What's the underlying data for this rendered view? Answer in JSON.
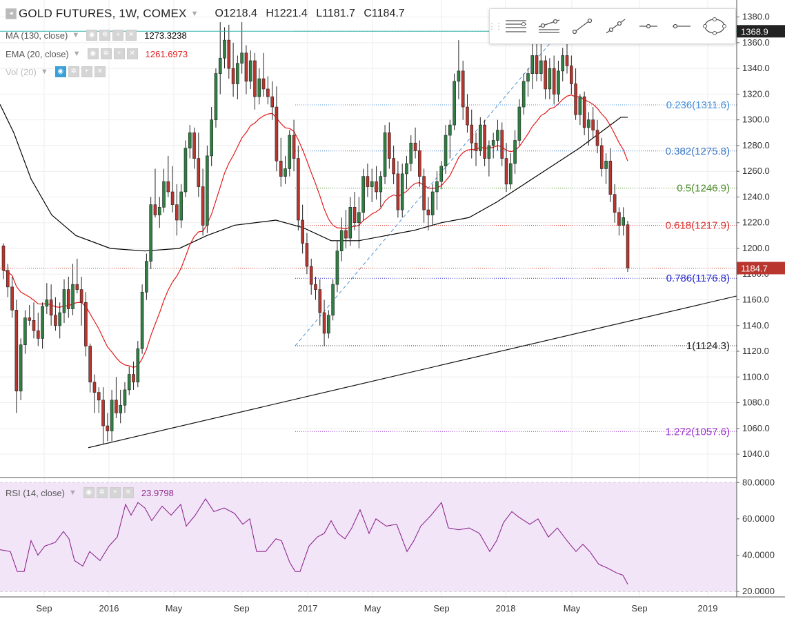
{
  "header": {
    "symbol_title": "GOLD FUTURES, 1W, COMEX",
    "open": "O1218.4",
    "high": "H1221.4",
    "low": "L1181.7",
    "close": "C1184.7"
  },
  "indicators": {
    "ma": {
      "label": "MA (130, close)",
      "value": "1273.3238",
      "color": "#000000"
    },
    "ema": {
      "label": "EMA (20, close)",
      "value": "1261.6973",
      "color": "#e31b1b"
    },
    "vol": {
      "label": "Vol (20)"
    },
    "rsi": {
      "label": "RSI (14, close)",
      "value": "23.9798",
      "color": "#8e2a8e"
    }
  },
  "toolbar_icons": [
    "horizontal-lines-icon",
    "channel-icon",
    "trend-line-icon",
    "ray-icon",
    "horizontal-ray-icon",
    "horizontal-line-icon",
    "ellipse-icon"
  ],
  "price_labels": {
    "last": "1184.7",
    "cursor": "1368.9"
  },
  "colors": {
    "up": "#2f7f43",
    "down": "#b8362e",
    "grid": "#eeeeee",
    "rsi_band": "#f2e5f8"
  },
  "chart_data": {
    "type": "candlestick",
    "title": "GOLD FUTURES, 1W, COMEX",
    "ylim": [
      1025,
      1390
    ],
    "price_ticks": [
      1040,
      1060,
      1080,
      1100,
      1120,
      1140,
      1160,
      1180,
      1200,
      1220,
      1240,
      1260,
      1280,
      1300,
      1320,
      1340,
      1360,
      1380
    ],
    "x_tick_labels": [
      "Sep",
      "2016",
      "May",
      "Sep",
      "2017",
      "May",
      "Sep",
      "2018",
      "May",
      "Sep",
      "2019"
    ],
    "rsi_ylim": [
      17,
      82
    ],
    "rsi_ticks": [
      "20.0000",
      "40.0000",
      "60.0000",
      "80.0000"
    ],
    "fibonacci": [
      {
        "label": "0.236(1311.6)",
        "value": 1311.6,
        "color": "#4a8fd8"
      },
      {
        "label": "0.382(1275.8)",
        "value": 1275.8,
        "color": "#3d78c4"
      },
      {
        "label": "0.5(1246.9)",
        "value": 1246.9,
        "color": "#4c8c2a"
      },
      {
        "label": "0.618(1217.9)",
        "value": 1217.9,
        "color": "#d9302c"
      },
      {
        "label": "0.786(1176.8)",
        "value": 1176.8,
        "color": "#2c2cd0"
      },
      {
        "label": "1(1124.3)",
        "value": 1124.3,
        "color": "#222222"
      },
      {
        "label": "1.272(1057.6)",
        "value": 1057.6,
        "color": "#9a2ed0"
      }
    ],
    "trend_line": {
      "from": [
        1045,
        "Dec 2015"
      ],
      "to": [
        1163,
        "Sep 2019"
      ]
    },
    "ohlc": [
      [
        1202,
        1204,
        1176,
        1183
      ],
      [
        1183,
        1188,
        1162,
        1170
      ],
      [
        1170,
        1178,
        1146,
        1152
      ],
      [
        1152,
        1160,
        1072,
        1089
      ],
      [
        1089,
        1130,
        1082,
        1125
      ],
      [
        1125,
        1152,
        1118,
        1146
      ],
      [
        1146,
        1156,
        1140,
        1144
      ],
      [
        1144,
        1158,
        1130,
        1136
      ],
      [
        1136,
        1150,
        1124,
        1130
      ],
      [
        1130,
        1158,
        1122,
        1155
      ],
      [
        1155,
        1173,
        1149,
        1160
      ],
      [
        1160,
        1172,
        1140,
        1148
      ],
      [
        1148,
        1162,
        1136,
        1140
      ],
      [
        1140,
        1158,
        1130,
        1150
      ],
      [
        1150,
        1176,
        1142,
        1168
      ],
      [
        1168,
        1178,
        1146,
        1153
      ],
      [
        1153,
        1188,
        1148,
        1172
      ],
      [
        1172,
        1192,
        1165,
        1168
      ],
      [
        1168,
        1178,
        1140,
        1158
      ],
      [
        1158,
        1166,
        1116,
        1124
      ],
      [
        1124,
        1126,
        1088,
        1096
      ],
      [
        1096,
        1102,
        1072,
        1088
      ],
      [
        1088,
        1092,
        1072,
        1082
      ],
      [
        1082,
        1092,
        1048,
        1062
      ],
      [
        1062,
        1072,
        1050,
        1058
      ],
      [
        1058,
        1090,
        1050,
        1082
      ],
      [
        1082,
        1100,
        1068,
        1072
      ],
      [
        1072,
        1090,
        1064,
        1078
      ],
      [
        1078,
        1096,
        1072,
        1090
      ],
      [
        1090,
        1108,
        1086,
        1102
      ],
      [
        1102,
        1112,
        1090,
        1096
      ],
      [
        1096,
        1128,
        1092,
        1122
      ],
      [
        1122,
        1172,
        1118,
        1166
      ],
      [
        1166,
        1196,
        1160,
        1190
      ],
      [
        1190,
        1240,
        1184,
        1234
      ],
      [
        1234,
        1262,
        1224,
        1226
      ],
      [
        1226,
        1240,
        1216,
        1232
      ],
      [
        1232,
        1262,
        1228,
        1252
      ],
      [
        1252,
        1272,
        1240,
        1244
      ],
      [
        1244,
        1264,
        1228,
        1234
      ],
      [
        1234,
        1250,
        1210,
        1222
      ],
      [
        1222,
        1250,
        1216,
        1244
      ],
      [
        1244,
        1284,
        1240,
        1278
      ],
      [
        1278,
        1296,
        1270,
        1290
      ],
      [
        1290,
        1294,
        1262,
        1270
      ],
      [
        1270,
        1290,
        1240,
        1248
      ],
      [
        1248,
        1262,
        1210,
        1218
      ],
      [
        1218,
        1280,
        1212,
        1272
      ],
      [
        1272,
        1310,
        1264,
        1300
      ],
      [
        1300,
        1340,
        1294,
        1336
      ],
      [
        1336,
        1376,
        1320,
        1348
      ],
      [
        1348,
        1372,
        1340,
        1362
      ],
      [
        1362,
        1374,
        1332,
        1340
      ],
      [
        1340,
        1360,
        1318,
        1328
      ],
      [
        1328,
        1350,
        1316,
        1344
      ],
      [
        1344,
        1376,
        1336,
        1352
      ],
      [
        1352,
        1358,
        1320,
        1330
      ],
      [
        1330,
        1354,
        1324,
        1346
      ],
      [
        1346,
        1352,
        1308,
        1318
      ],
      [
        1318,
        1340,
        1312,
        1332
      ],
      [
        1332,
        1352,
        1318,
        1324
      ],
      [
        1324,
        1334,
        1312,
        1318
      ],
      [
        1318,
        1330,
        1300,
        1310
      ],
      [
        1310,
        1326,
        1260,
        1268
      ],
      [
        1268,
        1286,
        1248,
        1256
      ],
      [
        1256,
        1272,
        1250,
        1262
      ],
      [
        1262,
        1292,
        1256,
        1288
      ],
      [
        1288,
        1300,
        1260,
        1270
      ],
      [
        1270,
        1280,
        1214,
        1222
      ],
      [
        1222,
        1234,
        1196,
        1204
      ],
      [
        1204,
        1212,
        1180,
        1186
      ],
      [
        1186,
        1192,
        1164,
        1172
      ],
      [
        1172,
        1178,
        1160,
        1168
      ],
      [
        1168,
        1176,
        1140,
        1150
      ],
      [
        1150,
        1160,
        1124,
        1134
      ],
      [
        1134,
        1152,
        1130,
        1148
      ],
      [
        1148,
        1176,
        1144,
        1172
      ],
      [
        1172,
        1206,
        1166,
        1198
      ],
      [
        1198,
        1224,
        1190,
        1214
      ],
      [
        1214,
        1230,
        1200,
        1208
      ],
      [
        1208,
        1240,
        1202,
        1232
      ],
      [
        1232,
        1244,
        1214,
        1220
      ],
      [
        1220,
        1240,
        1200,
        1228
      ],
      [
        1228,
        1262,
        1222,
        1256
      ],
      [
        1256,
        1266,
        1240,
        1248
      ],
      [
        1248,
        1262,
        1236,
        1252
      ],
      [
        1252,
        1264,
        1238,
        1244
      ],
      [
        1244,
        1260,
        1232,
        1256
      ],
      [
        1256,
        1296,
        1250,
        1290
      ],
      [
        1290,
        1298,
        1262,
        1270
      ],
      [
        1270,
        1280,
        1250,
        1258
      ],
      [
        1258,
        1268,
        1224,
        1230
      ],
      [
        1230,
        1266,
        1224,
        1258
      ],
      [
        1258,
        1272,
        1246,
        1266
      ],
      [
        1266,
        1288,
        1260,
        1282
      ],
      [
        1282,
        1294,
        1270,
        1276
      ],
      [
        1276,
        1284,
        1248,
        1256
      ],
      [
        1256,
        1262,
        1220,
        1230
      ],
      [
        1230,
        1240,
        1214,
        1226
      ],
      [
        1226,
        1250,
        1218,
        1244
      ],
      [
        1244,
        1260,
        1230,
        1252
      ],
      [
        1252,
        1268,
        1246,
        1264
      ],
      [
        1264,
        1296,
        1258,
        1288
      ],
      [
        1288,
        1300,
        1270,
        1296
      ],
      [
        1296,
        1336,
        1292,
        1330
      ],
      [
        1330,
        1362,
        1316,
        1338
      ],
      [
        1338,
        1346,
        1300,
        1310
      ],
      [
        1310,
        1320,
        1290,
        1296
      ],
      [
        1296,
        1308,
        1270,
        1282
      ],
      [
        1282,
        1290,
        1264,
        1276
      ],
      [
        1276,
        1302,
        1272,
        1296
      ],
      [
        1296,
        1300,
        1264,
        1270
      ],
      [
        1270,
        1284,
        1256,
        1280
      ],
      [
        1280,
        1290,
        1270,
        1284
      ],
      [
        1284,
        1300,
        1276,
        1292
      ],
      [
        1292,
        1298,
        1264,
        1270
      ],
      [
        1270,
        1282,
        1244,
        1250
      ],
      [
        1250,
        1274,
        1246,
        1266
      ],
      [
        1266,
        1292,
        1258,
        1284
      ],
      [
        1284,
        1316,
        1280,
        1310
      ],
      [
        1310,
        1336,
        1304,
        1330
      ],
      [
        1330,
        1340,
        1318,
        1336
      ],
      [
        1336,
        1360,
        1324,
        1350
      ],
      [
        1350,
        1366,
        1330,
        1336
      ],
      [
        1336,
        1362,
        1330,
        1346
      ],
      [
        1346,
        1350,
        1316,
        1324
      ],
      [
        1324,
        1348,
        1316,
        1340
      ],
      [
        1340,
        1350,
        1312,
        1320
      ],
      [
        1320,
        1346,
        1314,
        1338
      ],
      [
        1338,
        1356,
        1330,
        1350
      ],
      [
        1350,
        1366,
        1336,
        1342
      ],
      [
        1342,
        1350,
        1320,
        1328
      ],
      [
        1328,
        1340,
        1300,
        1304
      ],
      [
        1304,
        1320,
        1296,
        1318
      ],
      [
        1318,
        1322,
        1288,
        1294
      ],
      [
        1294,
        1306,
        1280,
        1300
      ],
      [
        1300,
        1310,
        1286,
        1292
      ],
      [
        1292,
        1300,
        1274,
        1280
      ],
      [
        1280,
        1286,
        1256,
        1262
      ],
      [
        1262,
        1274,
        1250,
        1268
      ],
      [
        1268,
        1278,
        1236,
        1242
      ],
      [
        1242,
        1250,
        1220,
        1228
      ],
      [
        1228,
        1232,
        1210,
        1218
      ],
      [
        1218,
        1232,
        1210,
        1224
      ],
      [
        1218.4,
        1221.4,
        1181.7,
        1184.7
      ]
    ],
    "ma130": [
      [
        0,
        1312
      ],
      [
        20,
        1290
      ],
      [
        45,
        1254
      ],
      [
        75,
        1226
      ],
      [
        110,
        1210
      ],
      [
        160,
        1200
      ],
      [
        210,
        1198
      ],
      [
        260,
        1200
      ],
      [
        300,
        1210
      ],
      [
        340,
        1218
      ],
      [
        400,
        1222
      ],
      [
        440,
        1216
      ],
      [
        480,
        1206
      ],
      [
        520,
        1206
      ],
      [
        560,
        1210
      ],
      [
        600,
        1214
      ],
      [
        640,
        1220
      ],
      [
        680,
        1224
      ],
      [
        720,
        1236
      ],
      [
        760,
        1250
      ],
      [
        800,
        1264
      ],
      [
        840,
        1278
      ],
      [
        880,
        1294
      ],
      [
        900,
        1302
      ],
      [
        910,
        1302
      ]
    ],
    "rsi": [
      [
        0,
        43
      ],
      [
        15,
        42
      ],
      [
        25,
        31
      ],
      [
        35,
        31
      ],
      [
        45,
        48
      ],
      [
        55,
        40
      ],
      [
        65,
        45
      ],
      [
        80,
        47
      ],
      [
        92,
        53
      ],
      [
        100,
        49
      ],
      [
        108,
        37
      ],
      [
        120,
        34
      ],
      [
        130,
        42
      ],
      [
        145,
        37
      ],
      [
        158,
        45
      ],
      [
        170,
        50
      ],
      [
        182,
        68
      ],
      [
        190,
        62
      ],
      [
        200,
        69
      ],
      [
        210,
        66
      ],
      [
        220,
        59
      ],
      [
        235,
        67
      ],
      [
        248,
        62
      ],
      [
        262,
        68
      ],
      [
        270,
        56
      ],
      [
        283,
        62
      ],
      [
        298,
        71
      ],
      [
        310,
        64
      ],
      [
        325,
        66
      ],
      [
        340,
        63
      ],
      [
        352,
        57
      ],
      [
        362,
        60
      ],
      [
        372,
        42
      ],
      [
        385,
        42
      ],
      [
        400,
        49
      ],
      [
        408,
        48
      ],
      [
        420,
        36
      ],
      [
        428,
        31
      ],
      [
        435,
        31
      ],
      [
        448,
        45
      ],
      [
        460,
        50
      ],
      [
        470,
        52
      ],
      [
        480,
        59
      ],
      [
        490,
        52
      ],
      [
        500,
        49
      ],
      [
        510,
        55
      ],
      [
        522,
        65
      ],
      [
        535,
        52
      ],
      [
        545,
        60
      ],
      [
        560,
        56
      ],
      [
        575,
        57
      ],
      [
        590,
        42
      ],
      [
        600,
        48
      ],
      [
        610,
        56
      ],
      [
        625,
        62
      ],
      [
        640,
        69
      ],
      [
        650,
        55
      ],
      [
        665,
        54
      ],
      [
        680,
        55
      ],
      [
        695,
        52
      ],
      [
        710,
        42
      ],
      [
        720,
        48
      ],
      [
        730,
        58
      ],
      [
        742,
        64
      ],
      [
        752,
        61
      ],
      [
        768,
        57
      ],
      [
        780,
        60
      ],
      [
        795,
        50
      ],
      [
        808,
        55
      ],
      [
        822,
        48
      ],
      [
        835,
        42
      ],
      [
        845,
        46
      ],
      [
        855,
        42
      ],
      [
        868,
        35
      ],
      [
        880,
        33
      ],
      [
        895,
        30
      ],
      [
        903,
        29
      ],
      [
        910,
        24
      ]
    ]
  }
}
